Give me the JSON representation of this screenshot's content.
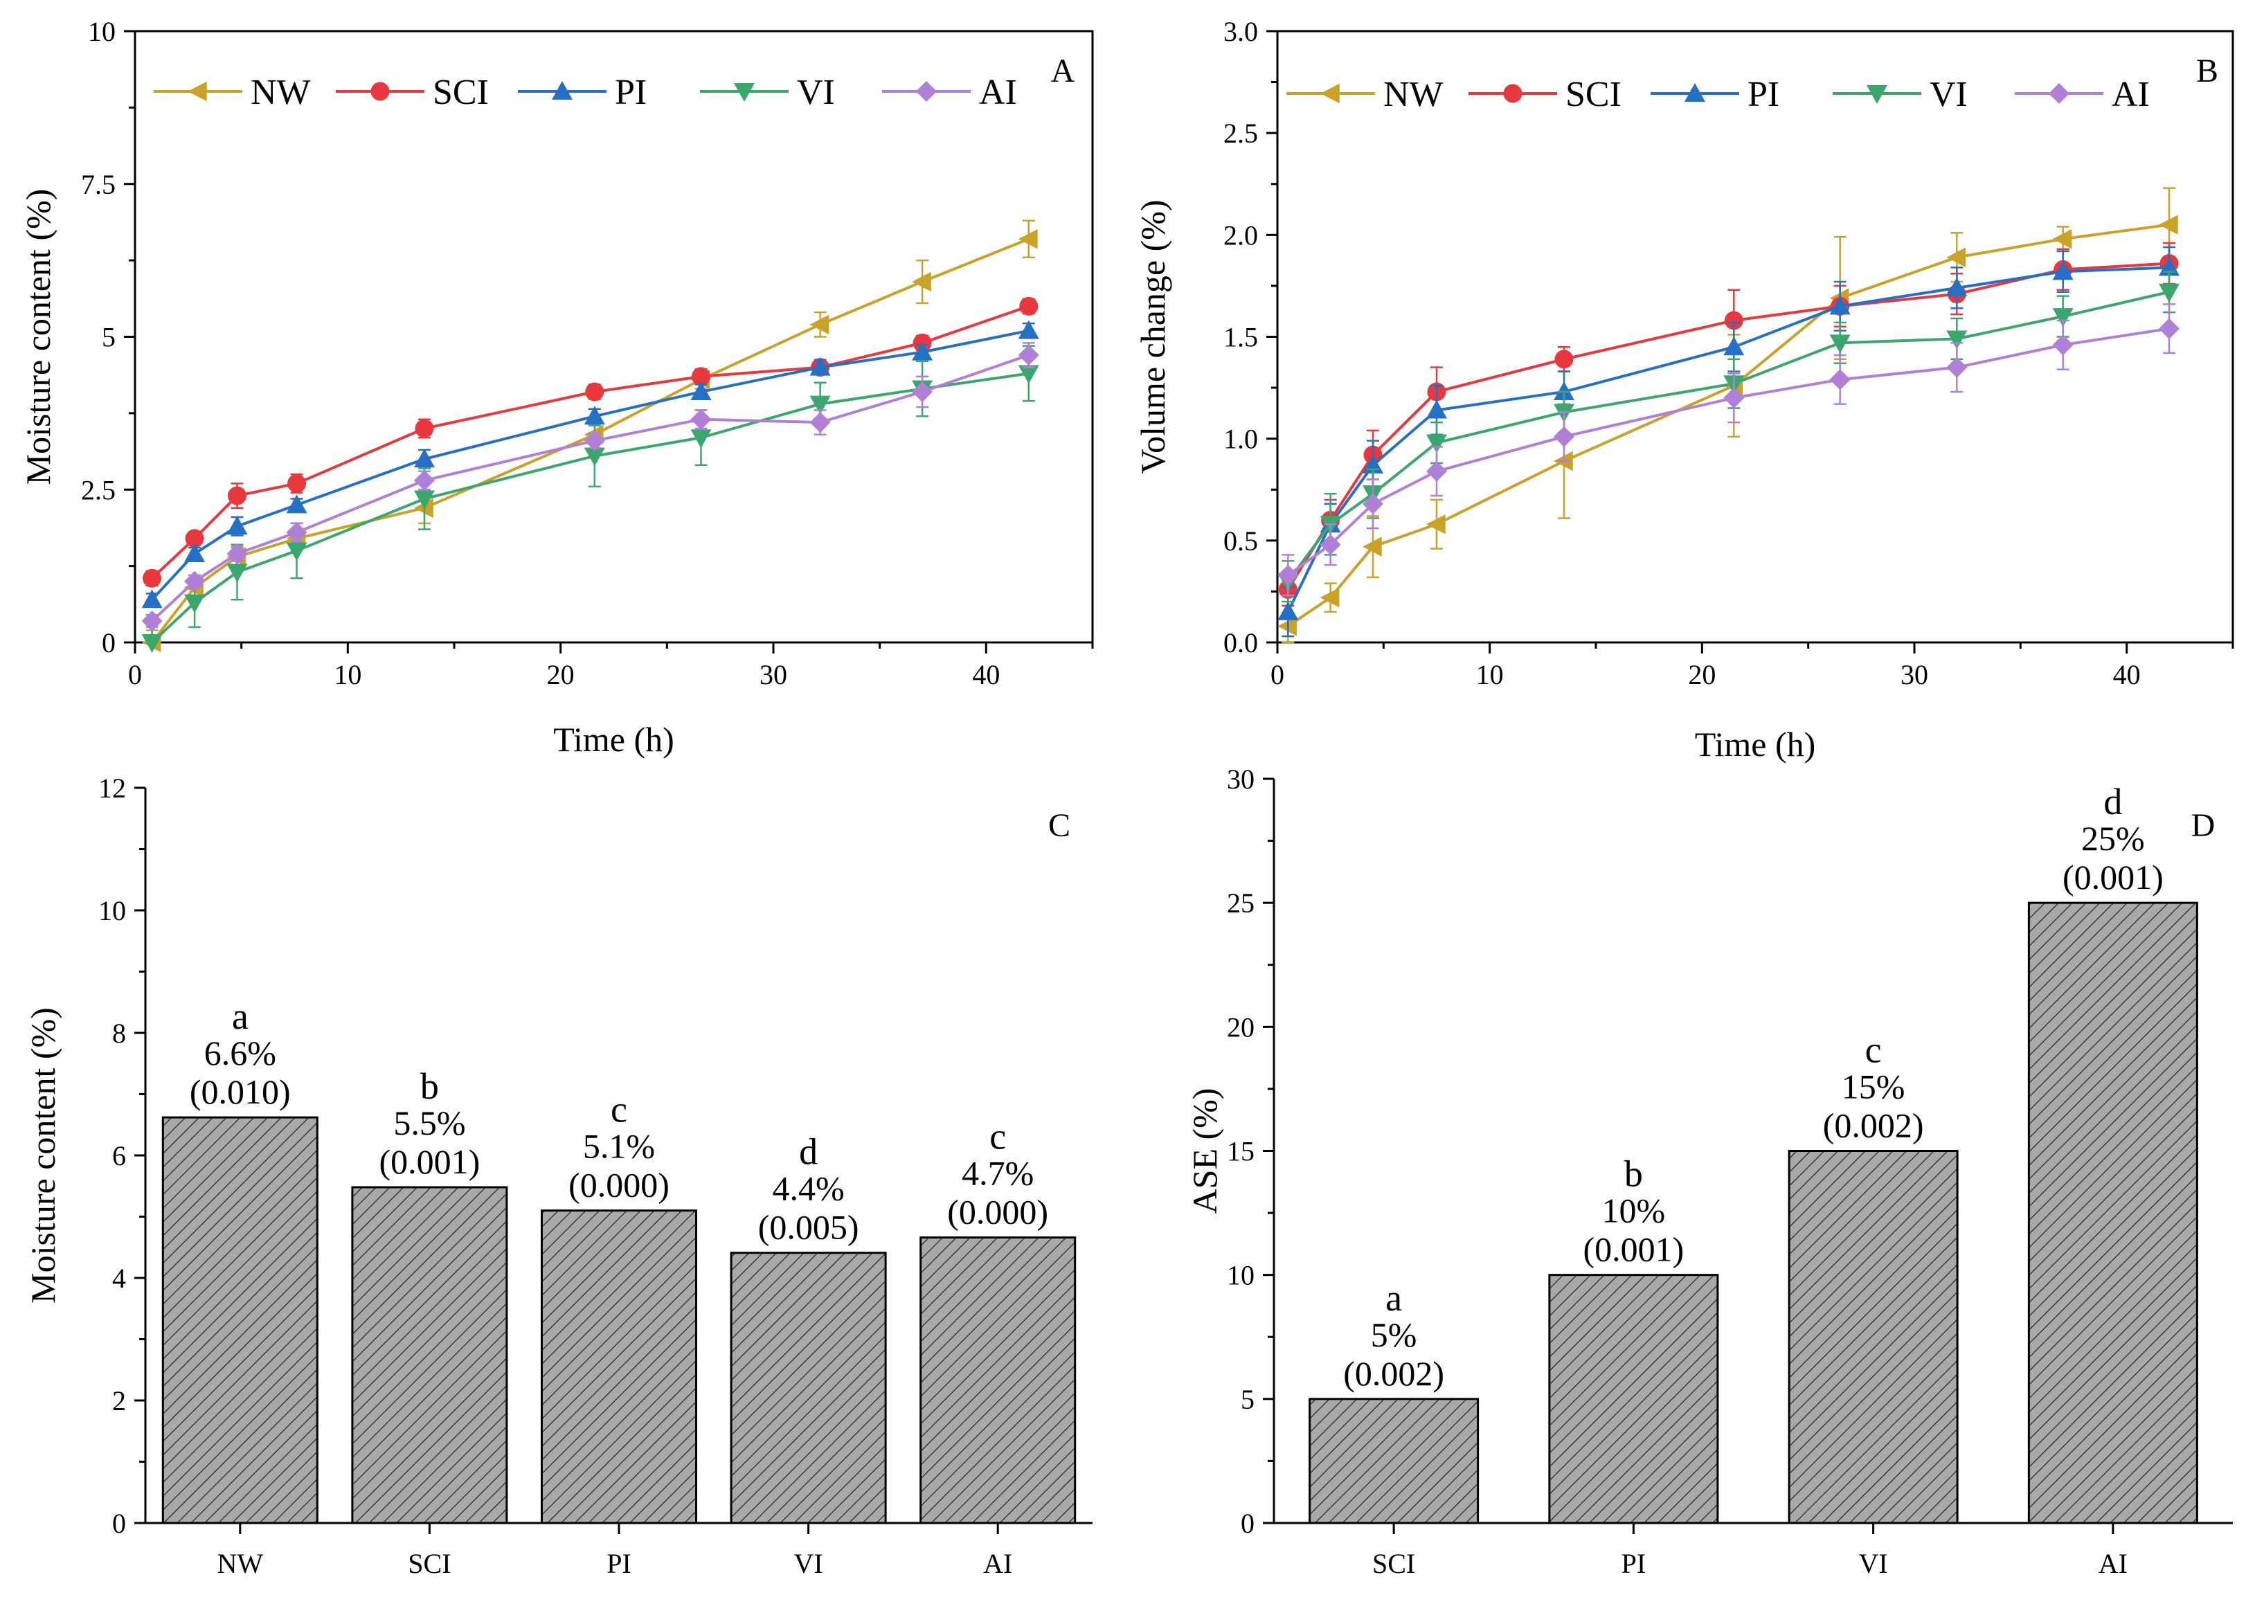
{
  "chart_data": [
    {
      "panel": "A",
      "type": "line",
      "xlabel": "Time (h)",
      "ylabel": "Moisture content (%)",
      "xlim": [
        0,
        45
      ],
      "ylim": [
        0,
        10
      ],
      "xticks": [
        0,
        10,
        20,
        30,
        40
      ],
      "xtick_labels": [
        "0",
        "10",
        "20",
        "30",
        "40"
      ],
      "yticks": [
        0,
        2.5,
        5,
        7.5,
        10
      ],
      "ytick_labels": [
        "0",
        "2.5",
        "5",
        "7.5",
        "10"
      ],
      "legend_position": "top",
      "x": [
        0.8,
        2.8,
        4.8,
        7.6,
        13.6,
        21.6,
        26.6,
        32.2,
        37,
        42
      ],
      "series": [
        {
          "name": "NW",
          "color": "#c9a227",
          "marker": "triangle-left",
          "values": [
            0.0,
            0.9,
            1.4,
            1.7,
            2.2,
            3.4,
            4.3,
            5.2,
            5.9,
            6.6
          ],
          "errors": [
            0.2,
            0.15,
            0.15,
            0.15,
            0.25,
            0.15,
            0.15,
            0.2,
            0.35,
            0.3
          ]
        },
        {
          "name": "SCI",
          "color": "#e8383d",
          "marker": "circle",
          "values": [
            1.05,
            1.7,
            2.4,
            2.6,
            3.5,
            4.1,
            4.35,
            4.5,
            4.9,
            5.5
          ],
          "errors": [
            0.12,
            0.1,
            0.2,
            0.15,
            0.15,
            0.12,
            0.12,
            0.12,
            0.12,
            0.12
          ]
        },
        {
          "name": "PI",
          "color": "#2470c7",
          "marker": "triangle-up",
          "values": [
            0.7,
            1.45,
            1.9,
            2.25,
            3.0,
            3.7,
            4.1,
            4.5,
            4.75,
            5.1
          ],
          "errors": [
            0.1,
            0.1,
            0.15,
            0.1,
            0.15,
            0.12,
            0.12,
            0.12,
            0.12,
            0.12
          ]
        },
        {
          "name": "VI",
          "color": "#3aa76d",
          "marker": "triangle-down",
          "values": [
            0.0,
            0.65,
            1.15,
            1.5,
            2.35,
            3.05,
            3.35,
            3.9,
            4.15,
            4.4
          ],
          "errors": [
            0.4,
            0.4,
            0.45,
            0.45,
            0.5,
            0.5,
            0.45,
            0.35,
            0.45,
            0.45
          ]
        },
        {
          "name": "AI",
          "color": "#b07fd8",
          "marker": "diamond",
          "values": [
            0.35,
            1.0,
            1.45,
            1.8,
            2.65,
            3.3,
            3.65,
            3.6,
            4.1,
            4.7
          ],
          "errors": [
            0.1,
            0.1,
            0.12,
            0.15,
            0.15,
            0.12,
            0.15,
            0.2,
            0.25,
            0.2
          ]
        }
      ]
    },
    {
      "panel": "B",
      "type": "line",
      "xlabel": "Time (h)",
      "ylabel": "Volume change (%)",
      "xlim": [
        0,
        45
      ],
      "ylim": [
        0,
        3.0
      ],
      "xticks": [
        0,
        10,
        20,
        30,
        40
      ],
      "xtick_labels": [
        "0",
        "10",
        "20",
        "30",
        "40"
      ],
      "yticks": [
        0,
        0.5,
        1.0,
        1.5,
        2.0,
        2.5,
        3.0
      ],
      "ytick_labels": [
        "0.0",
        "0.5",
        "1.0",
        "1.5",
        "2.0",
        "2.5",
        "3.0"
      ],
      "legend_position": "top",
      "x": [
        0.5,
        2.5,
        4.5,
        7.5,
        13.5,
        21.5,
        26.5,
        32,
        37,
        42
      ],
      "series": [
        {
          "name": "NW",
          "color": "#c9a227",
          "marker": "triangle-left",
          "values": [
            0.08,
            0.22,
            0.47,
            0.58,
            0.89,
            1.26,
            1.69,
            1.89,
            1.98,
            2.05
          ],
          "errors": [
            0.1,
            0.07,
            0.15,
            0.12,
            0.28,
            0.25,
            0.3,
            0.12,
            0.06,
            0.18
          ]
        },
        {
          "name": "SCI",
          "color": "#e8383d",
          "marker": "circle",
          "values": [
            0.26,
            0.6,
            0.92,
            1.23,
            1.39,
            1.58,
            1.65,
            1.71,
            1.83,
            1.86
          ],
          "errors": [
            0.08,
            0.1,
            0.12,
            0.12,
            0.06,
            0.15,
            0.1,
            0.1,
            0.1,
            0.1
          ]
        },
        {
          "name": "PI",
          "color": "#2470c7",
          "marker": "triangle-up",
          "values": [
            0.15,
            0.58,
            0.87,
            1.14,
            1.23,
            1.45,
            1.65,
            1.74,
            1.82,
            1.84
          ],
          "errors": [
            0.12,
            0.1,
            0.12,
            0.12,
            0.1,
            0.12,
            0.12,
            0.1,
            0.1,
            0.1
          ]
        },
        {
          "name": "VI",
          "color": "#3aa76d",
          "marker": "triangle-down",
          "values": [
            0.3,
            0.58,
            0.73,
            0.98,
            1.13,
            1.27,
            1.47,
            1.49,
            1.6,
            1.72
          ],
          "errors": [
            0.1,
            0.15,
            0.12,
            0.1,
            0.1,
            0.12,
            0.1,
            0.1,
            0.1,
            0.1
          ]
        },
        {
          "name": "AI",
          "color": "#b07fd8",
          "marker": "diamond",
          "values": [
            0.33,
            0.48,
            0.68,
            0.84,
            1.01,
            1.2,
            1.29,
            1.35,
            1.46,
            1.54
          ],
          "errors": [
            0.1,
            0.1,
            0.12,
            0.12,
            0.12,
            0.12,
            0.12,
            0.12,
            0.12,
            0.12
          ]
        }
      ]
    },
    {
      "panel": "C",
      "type": "bar",
      "xlabel": "",
      "ylabel": "Moisture content (%)",
      "ylim": [
        0,
        12
      ],
      "yticks": [
        0,
        2,
        4,
        6,
        8,
        10,
        12
      ],
      "ytick_labels": [
        "0",
        "2",
        "4",
        "6",
        "8",
        "10",
        "12"
      ],
      "categories": [
        "NW",
        "SCI",
        "PI",
        "VI",
        "AI"
      ],
      "values": [
        6.62,
        5.48,
        5.1,
        4.41,
        4.66
      ],
      "letters": [
        "a",
        "b",
        "c",
        "d",
        "c"
      ],
      "value_labels": [
        "6.6%",
        "5.5%",
        "5.1%",
        "4.4%",
        "4.7%"
      ],
      "p_labels": [
        "(0.010)",
        "(0.001)",
        "(0.000)",
        "(0.005)",
        "(0.000)"
      ]
    },
    {
      "panel": "D",
      "type": "bar",
      "xlabel": "",
      "ylabel": "ASE  (%)",
      "ylim": [
        0,
        30
      ],
      "yticks": [
        0,
        5,
        10,
        15,
        20,
        25,
        30
      ],
      "ytick_labels": [
        "0",
        "5",
        "10",
        "15",
        "20",
        "25",
        "30"
      ],
      "categories": [
        "SCI",
        "PI",
        "VI",
        "AI"
      ],
      "values": [
        5,
        10,
        15,
        25
      ],
      "letters": [
        "a",
        "b",
        "c",
        "d"
      ],
      "value_labels": [
        "5%",
        "10%",
        "15%",
        "25%"
      ],
      "p_labels": [
        "(0.002)",
        "(0.001)",
        "(0.002)",
        "(0.001)"
      ]
    }
  ]
}
